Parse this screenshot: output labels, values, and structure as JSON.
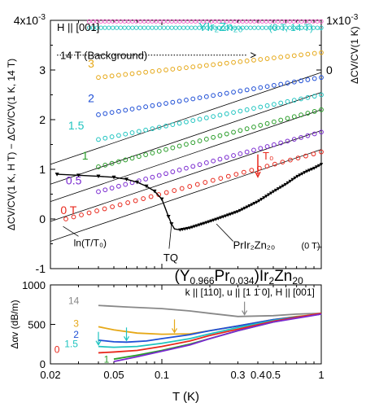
{
  "chart_data": [
    {
      "type": "scatter",
      "panel": "top",
      "x_scale": "log",
      "xlim": [
        0.02,
        1
      ],
      "ylim": [
        -1,
        4
      ],
      "y_unit_multiplier": "10^-3",
      "yticks": [
        "-1",
        "0",
        "1",
        "2",
        "3",
        "4x10"
      ],
      "ytick_exp": "-3",
      "ylabel": "ΔCV/CV(1 K, H T) − ΔCV/CV(1 K, 14 T)",
      "right_axis": {
        "label": "ΔCV/CV(1 K)",
        "ticks": [
          "0",
          "1x10"
        ],
        "tick_exp": "-3",
        "offset_mapping": [
          {
            "left_value": 3.0,
            "right_value": 0
          },
          {
            "left_value": 4.0,
            "right_value": 1
          }
        ]
      },
      "annotations": {
        "field_direction": "H || [001]",
        "ylrzn_label": "YIr₂Zn₂₀",
        "ylrzn_condition": "(0 T, 14 T)",
        "background_label": "14 T (Background)",
        "prlrzn_label": "PrIr₂Zn₂₀",
        "prlrzn_condition": "(0 T)",
        "t0_label": "T₀",
        "tq_label": "TQ",
        "ln_label": "ln(T/T₀)"
      },
      "series": [
        {
          "name": "3",
          "color": "#e6a817",
          "x_start": 0.04,
          "y_at_start": 2.85,
          "y_at_end": 3.35
        },
        {
          "name": "2",
          "color": "#1f4fd6",
          "x_start": 0.04,
          "y_at_start": 2.1,
          "y_at_end": 2.85
        },
        {
          "name": "1.5",
          "color": "#20c4c0",
          "x_start": 0.04,
          "y_at_start": 1.6,
          "y_at_end": 2.5
        },
        {
          "name": "1",
          "color": "#2a9d2a",
          "x_start": 0.04,
          "y_at_start": 1.05,
          "y_at_end": 2.2
        },
        {
          "name": "0.5",
          "color": "#7a2ad0",
          "x_start": 0.04,
          "y_at_start": 0.55,
          "y_at_end": 1.75
        },
        {
          "name": "0 T",
          "color": "#e8281c",
          "x_start": 0.025,
          "y_at_start": 0.0,
          "y_at_end": 1.35
        }
      ],
      "ylrzn_series": [
        {
          "condition": "0 T",
          "color": "#f064c8",
          "y": 3.98
        },
        {
          "condition": "14 T",
          "color": "#20c4c0",
          "y": 3.85
        }
      ],
      "prlrzn_data": {
        "color": "#000000",
        "x": [
          0.022,
          0.03,
          0.04,
          0.05,
          0.06,
          0.07,
          0.08,
          0.09,
          0.1,
          0.11,
          0.115,
          0.12,
          0.13,
          0.15,
          0.2,
          0.3,
          0.4,
          0.5,
          0.6,
          0.7,
          0.8,
          0.9,
          1.0
        ],
        "y": [
          0.9,
          0.88,
          0.86,
          0.84,
          0.8,
          0.74,
          0.66,
          0.56,
          0.4,
          0.05,
          -0.1,
          -0.2,
          -0.22,
          -0.18,
          -0.05,
          0.15,
          0.35,
          0.55,
          0.7,
          0.85,
          0.95,
          1.02,
          1.1
        ]
      }
    },
    {
      "type": "line",
      "panel": "bottom",
      "title": "(Y0.966Pr0.034)Ir2Zn20",
      "title_parts": {
        "base": "(Y",
        "sub1": "0.966",
        "mid": "Pr",
        "sub2": "0.034",
        "tail": ")Ir",
        "sub3": "2",
        "zn": "Zn",
        "sub4": "20"
      },
      "subtitle": "k || [110], u || [1 1̄ 0], H || [001]",
      "x_scale": "log",
      "xlim": [
        0.02,
        1
      ],
      "ylim": [
        0,
        1000
      ],
      "yticks": [
        "0",
        "500",
        "1000"
      ],
      "ylabel": "Δαv (dB/m)",
      "xlabel": "T (K)",
      "xticks": [
        "0.02",
        "0.05",
        "0.1",
        "0.3",
        "0.4",
        "0.5",
        "1"
      ],
      "series": [
        {
          "name": "14",
          "color": "#888888",
          "x": [
            0.04,
            0.06,
            0.1,
            0.15,
            0.2,
            0.3,
            0.5,
            0.7,
            1.0
          ],
          "y": [
            740,
            720,
            700,
            670,
            640,
            600,
            610,
            630,
            640
          ]
        },
        {
          "name": "3",
          "color": "#e6a817",
          "x": [
            0.04,
            0.05,
            0.07,
            0.1,
            0.15,
            0.2,
            0.3,
            0.5,
            0.7,
            1.0
          ],
          "y": [
            470,
            430,
            390,
            375,
            380,
            420,
            480,
            560,
            600,
            630
          ]
        },
        {
          "name": "2",
          "color": "#1f4fd6",
          "x": [
            0.04,
            0.05,
            0.06,
            0.08,
            0.1,
            0.15,
            0.2,
            0.3,
            0.5,
            1.0
          ],
          "y": [
            300,
            280,
            275,
            290,
            320,
            370,
            420,
            480,
            560,
            630
          ]
        },
        {
          "name": "1.5",
          "color": "#20c4c0",
          "x": [
            0.04,
            0.05,
            0.07,
            0.1,
            0.15,
            0.2,
            0.3,
            0.5,
            1.0
          ],
          "y": [
            220,
            210,
            220,
            260,
            320,
            380,
            460,
            550,
            630
          ]
        },
        {
          "name": "1",
          "color": "#2a9d2a",
          "x": [
            0.05,
            0.07,
            0.1,
            0.15,
            0.2,
            0.3,
            0.5,
            1.0
          ],
          "y": [
            60,
            110,
            170,
            250,
            320,
            420,
            530,
            640
          ]
        },
        {
          "name": "0",
          "color": "#e8281c",
          "x": [
            0.04,
            0.05,
            0.07,
            0.1,
            0.15,
            0.2,
            0.3,
            0.5,
            1.0
          ],
          "y": [
            140,
            150,
            170,
            220,
            290,
            360,
            440,
            540,
            640
          ]
        },
        {
          "name": "0.5",
          "color": "#7a2ad0",
          "x": [
            0.05,
            0.07,
            0.1,
            0.15,
            0.2,
            0.3,
            0.5,
            1.0
          ],
          "y": [
            30,
            90,
            160,
            240,
            320,
            420,
            530,
            630
          ]
        }
      ],
      "arrows": [
        {
          "series": "14",
          "x": 0.33,
          "color": "#888888"
        },
        {
          "series": "3",
          "x": 0.12,
          "color": "#e6a817"
        },
        {
          "series": "2",
          "x": 0.06,
          "color": "#20c4c0"
        },
        {
          "series": "1.5",
          "x": 0.04,
          "color": "#20c4c0"
        }
      ]
    }
  ]
}
